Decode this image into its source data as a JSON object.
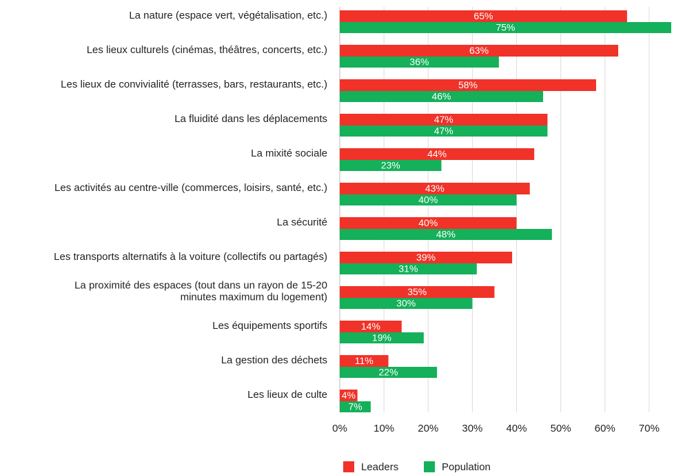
{
  "chart_data": {
    "type": "bar",
    "orientation": "horizontal",
    "categories": [
      "La nature (espace vert, végétalisation, etc.)",
      "Les lieux culturels (cinémas, théâtres, concerts, etc.)",
      "Les lieux de convivialité (terrasses, bars, restaurants, etc.)",
      "La fluidité dans les déplacements",
      "La mixité sociale",
      "Les activités au centre-ville (commerces, loisirs, santé, etc.)",
      "La sécurité",
      "Les transports alternatifs à la voiture (collectifs ou partagés)",
      "La proximité des espaces (tout dans un rayon de 15-20\nminutes maximum du logement)",
      "Les équipements sportifs",
      "La gestion des déchets",
      "Les lieux de culte"
    ],
    "series": [
      {
        "name": "Leaders",
        "color": "#f03228",
        "values": [
          65,
          63,
          58,
          47,
          44,
          43,
          40,
          39,
          35,
          14,
          11,
          4
        ],
        "value_labels": [
          "65%",
          "63%",
          "58%",
          "47%",
          "44%",
          "43%",
          "40%",
          "39%",
          "35%",
          "14%",
          "11%",
          "4%"
        ]
      },
      {
        "name": "Population",
        "color": "#14b05a",
        "values": [
          75,
          36,
          46,
          47,
          23,
          40,
          48,
          31,
          30,
          19,
          22,
          7
        ],
        "value_labels": [
          "75%",
          "36%",
          "46%",
          "47%",
          "23%",
          "40%",
          "48%",
          "31%",
          "30%",
          "19%",
          "22%",
          "7%"
        ]
      }
    ],
    "xlim": [
      0,
      75
    ],
    "xticks": [
      {
        "value": 0,
        "label": "0%"
      },
      {
        "value": 10,
        "label": "10%"
      },
      {
        "value": 20,
        "label": "20%"
      },
      {
        "value": 30,
        "label": "30%"
      },
      {
        "value": 40,
        "label": "40%"
      },
      {
        "value": 50,
        "label": "50%"
      },
      {
        "value": 60,
        "label": "60%"
      },
      {
        "value": 70,
        "label": "70%"
      }
    ],
    "grid": true,
    "legend": "bottom"
  }
}
